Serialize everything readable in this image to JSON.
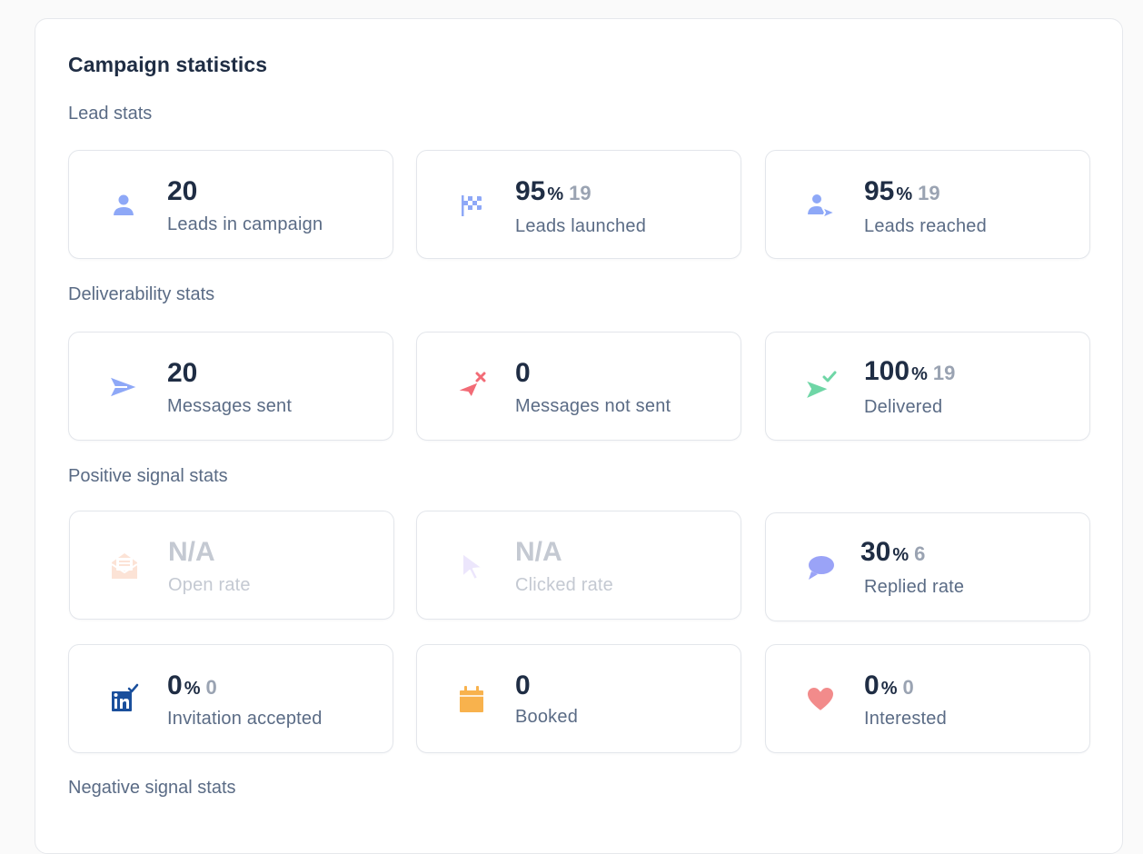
{
  "panel": {
    "title": "Campaign statistics"
  },
  "sections": {
    "lead": "Lead stats",
    "deliverability": "Deliverability stats",
    "positive": "Positive signal stats",
    "negative": "Negative signal stats"
  },
  "cards": {
    "leads_in_campaign": {
      "value": "20",
      "label": "Leads in campaign",
      "icon": "user-icon"
    },
    "leads_launched": {
      "value": "95",
      "pct": "%",
      "count": "19",
      "label": "Leads launched",
      "icon": "checkered-flag-icon"
    },
    "leads_reached": {
      "value": "95",
      "pct": "%",
      "count": "19",
      "label": "Leads reached",
      "icon": "user-send-icon"
    },
    "messages_sent": {
      "value": "20",
      "label": "Messages sent",
      "icon": "paper-plane-icon"
    },
    "messages_not_sent": {
      "value": "0",
      "label": "Messages not sent",
      "icon": "plane-failed-icon"
    },
    "delivered": {
      "value": "100",
      "pct": "%",
      "count": "19",
      "label": "Delivered",
      "icon": "plane-delivered-icon"
    },
    "open_rate": {
      "value": "N/A",
      "label": "Open rate",
      "icon": "open-envelope-icon"
    },
    "clicked_rate": {
      "value": "N/A",
      "label": "Clicked rate",
      "icon": "cursor-icon"
    },
    "replied_rate": {
      "value": "30",
      "pct": "%",
      "count": "6",
      "label": "Replied rate",
      "icon": "chat-bubble-icon"
    },
    "invitation_accepted": {
      "value": "0",
      "pct": "%",
      "count": "0",
      "label": "Invitation accepted",
      "icon": "linkedin-check-icon"
    },
    "booked": {
      "value": "0",
      "label": "Booked",
      "icon": "calendar-icon"
    },
    "interested": {
      "value": "0",
      "pct": "%",
      "count": "0",
      "label": "Interested",
      "icon": "heart-icon"
    }
  },
  "colors": {
    "accent_blue": "#8ea8f7",
    "failed_red": "#f26b76",
    "delivered_green": "#6fd6a6",
    "open_orange": "#f8b08c",
    "cursor_purple": "#c9b8f7",
    "reply_purple": "#9aa3f7",
    "linkedin_blue": "#1a4f9c",
    "calendar_orange": "#f8b24d",
    "heart_red": "#f28b8b"
  }
}
